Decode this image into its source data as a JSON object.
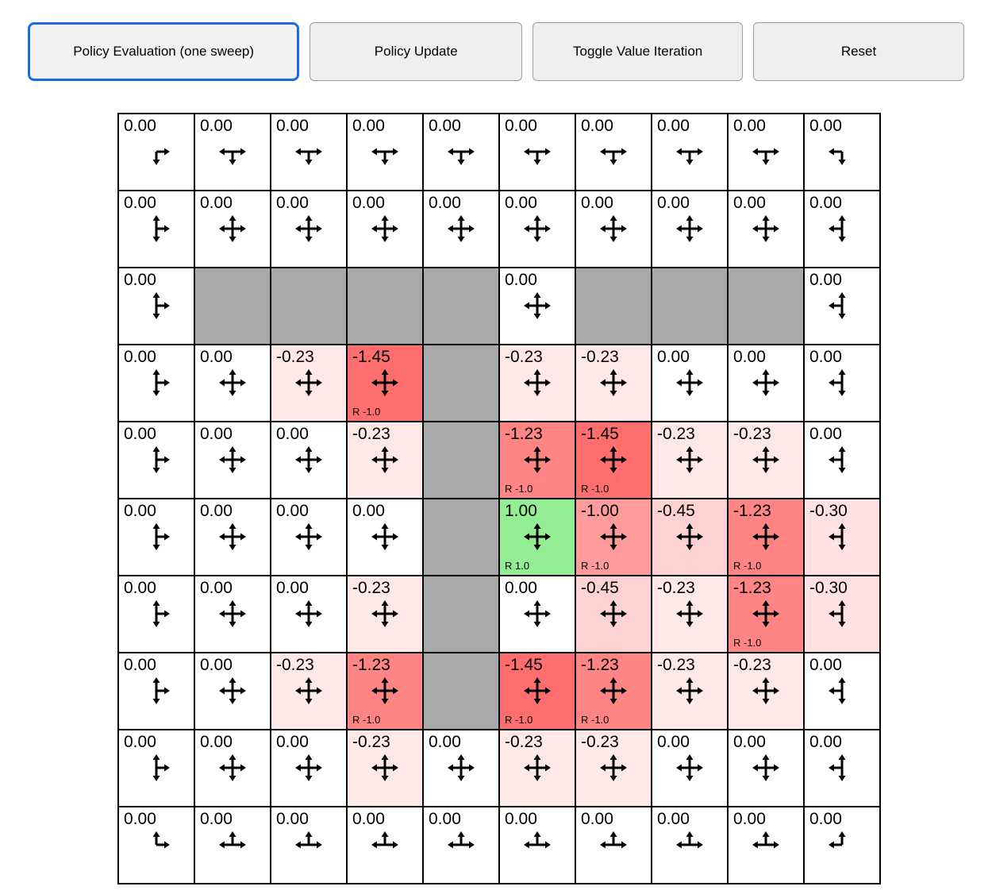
{
  "toolbar": {
    "buttons": [
      {
        "label": "Policy Evaluation (one sweep)",
        "active": true
      },
      {
        "label": "Policy Update",
        "active": false
      },
      {
        "label": "Toggle Value Iteration",
        "active": false
      },
      {
        "label": "Reset",
        "active": false
      }
    ]
  },
  "colors": {
    "wall": "#A9A9A9",
    "active_button_border": "#1B6AE5",
    "cell_border": "#000000",
    "positive_cell": "#94EE94",
    "negative_weak": "#FFE8E8",
    "negative_strong": "#FF6E6E"
  },
  "grid": {
    "cols": 10,
    "rows": [
      [
        {
          "v": "0.00",
          "a": "rd"
        },
        {
          "v": "0.00",
          "a": "lrd"
        },
        {
          "v": "0.00",
          "a": "lrd"
        },
        {
          "v": "0.00",
          "a": "lrd"
        },
        {
          "v": "0.00",
          "a": "lrd"
        },
        {
          "v": "0.00",
          "a": "lrd"
        },
        {
          "v": "0.00",
          "a": "lrd"
        },
        {
          "v": "0.00",
          "a": "lrd"
        },
        {
          "v": "0.00",
          "a": "lrd"
        },
        {
          "v": "0.00",
          "a": "ld"
        }
      ],
      [
        {
          "v": "0.00",
          "a": "udr"
        },
        {
          "v": "0.00",
          "a": "udlr"
        },
        {
          "v": "0.00",
          "a": "udlr"
        },
        {
          "v": "0.00",
          "a": "udlr"
        },
        {
          "v": "0.00",
          "a": "udlr"
        },
        {
          "v": "0.00",
          "a": "udlr"
        },
        {
          "v": "0.00",
          "a": "udlr"
        },
        {
          "v": "0.00",
          "a": "udlr"
        },
        {
          "v": "0.00",
          "a": "udlr"
        },
        {
          "v": "0.00",
          "a": "udl"
        }
      ],
      [
        {
          "v": "0.00",
          "a": "udr"
        },
        {
          "wall": true
        },
        {
          "wall": true
        },
        {
          "wall": true
        },
        {
          "wall": true
        },
        {
          "v": "0.00",
          "a": "udlr"
        },
        {
          "wall": true
        },
        {
          "wall": true
        },
        {
          "wall": true
        },
        {
          "v": "0.00",
          "a": "udl"
        }
      ],
      [
        {
          "v": "0.00",
          "a": "udr"
        },
        {
          "v": "0.00",
          "a": "udlr"
        },
        {
          "v": "-0.23",
          "a": "udlr",
          "bg": "#FFE8E8"
        },
        {
          "v": "-1.45",
          "a": "udlr",
          "bg": "#FF6E6E",
          "rw": "R -1.0"
        },
        {
          "wall": true
        },
        {
          "v": "-0.23",
          "a": "udlr",
          "bg": "#FFE8E8"
        },
        {
          "v": "-0.23",
          "a": "udlr",
          "bg": "#FFE8E8"
        },
        {
          "v": "0.00",
          "a": "udlr"
        },
        {
          "v": "0.00",
          "a": "udlr"
        },
        {
          "v": "0.00",
          "a": "udl"
        }
      ],
      [
        {
          "v": "0.00",
          "a": "udr"
        },
        {
          "v": "0.00",
          "a": "udlr"
        },
        {
          "v": "0.00",
          "a": "udlr"
        },
        {
          "v": "-0.23",
          "a": "udlr",
          "bg": "#FFE8E8"
        },
        {
          "wall": true
        },
        {
          "v": "-1.23",
          "a": "udlr",
          "bg": "#FF8484",
          "rw": "R -1.0"
        },
        {
          "v": "-1.45",
          "a": "udlr",
          "bg": "#FF6E6E",
          "rw": "R -1.0"
        },
        {
          "v": "-0.23",
          "a": "udlr",
          "bg": "#FFE8E8"
        },
        {
          "v": "-0.23",
          "a": "udlr",
          "bg": "#FFE8E8"
        },
        {
          "v": "0.00",
          "a": "udl"
        }
      ],
      [
        {
          "v": "0.00",
          "a": "udr"
        },
        {
          "v": "0.00",
          "a": "udlr"
        },
        {
          "v": "0.00",
          "a": "udlr"
        },
        {
          "v": "0.00",
          "a": "udlr"
        },
        {
          "wall": true
        },
        {
          "v": "1.00",
          "a": "udlr",
          "bg": "#94EE94",
          "rw": "R 1.0"
        },
        {
          "v": "-1.00",
          "a": "udlr",
          "bg": "#FF9B9B",
          "rw": "R -1.0"
        },
        {
          "v": "-0.45",
          "a": "udlr",
          "bg": "#FFD2D2"
        },
        {
          "v": "-1.23",
          "a": "udlr",
          "bg": "#FF8484",
          "rw": "R -1.0"
        },
        {
          "v": "-0.30",
          "a": "udl",
          "bg": "#FFE1E1"
        }
      ],
      [
        {
          "v": "0.00",
          "a": "udr"
        },
        {
          "v": "0.00",
          "a": "udlr"
        },
        {
          "v": "0.00",
          "a": "udlr"
        },
        {
          "v": "-0.23",
          "a": "udlr",
          "bg": "#FFE8E8"
        },
        {
          "wall": true
        },
        {
          "v": "0.00",
          "a": "udlr"
        },
        {
          "v": "-0.45",
          "a": "udlr",
          "bg": "#FFD2D2"
        },
        {
          "v": "-0.23",
          "a": "udlr",
          "bg": "#FFE8E8"
        },
        {
          "v": "-1.23",
          "a": "udlr",
          "bg": "#FF8484",
          "rw": "R -1.0"
        },
        {
          "v": "-0.30",
          "a": "udl",
          "bg": "#FFE1E1"
        }
      ],
      [
        {
          "v": "0.00",
          "a": "udr"
        },
        {
          "v": "0.00",
          "a": "udlr"
        },
        {
          "v": "-0.23",
          "a": "udlr",
          "bg": "#FFE8E8"
        },
        {
          "v": "-1.23",
          "a": "udlr",
          "bg": "#FF8484",
          "rw": "R -1.0"
        },
        {
          "wall": true
        },
        {
          "v": "-1.45",
          "a": "udlr",
          "bg": "#FF6E6E",
          "rw": "R -1.0"
        },
        {
          "v": "-1.23",
          "a": "udlr",
          "bg": "#FF8484",
          "rw": "R -1.0"
        },
        {
          "v": "-0.23",
          "a": "udlr",
          "bg": "#FFE8E8"
        },
        {
          "v": "-0.23",
          "a": "udlr",
          "bg": "#FFE8E8"
        },
        {
          "v": "0.00",
          "a": "udl"
        }
      ],
      [
        {
          "v": "0.00",
          "a": "udr"
        },
        {
          "v": "0.00",
          "a": "udlr"
        },
        {
          "v": "0.00",
          "a": "udlr"
        },
        {
          "v": "-0.23",
          "a": "udlr",
          "bg": "#FFE8E8"
        },
        {
          "v": "0.00",
          "a": "udlr"
        },
        {
          "v": "-0.23",
          "a": "udlr",
          "bg": "#FFE8E8"
        },
        {
          "v": "-0.23",
          "a": "udlr",
          "bg": "#FFE8E8"
        },
        {
          "v": "0.00",
          "a": "udlr"
        },
        {
          "v": "0.00",
          "a": "udlr"
        },
        {
          "v": "0.00",
          "a": "udl"
        }
      ],
      [
        {
          "v": "0.00",
          "a": "ur"
        },
        {
          "v": "0.00",
          "a": "ulr"
        },
        {
          "v": "0.00",
          "a": "ulr"
        },
        {
          "v": "0.00",
          "a": "ulr"
        },
        {
          "v": "0.00",
          "a": "ulr"
        },
        {
          "v": "0.00",
          "a": "ulr"
        },
        {
          "v": "0.00",
          "a": "ulr"
        },
        {
          "v": "0.00",
          "a": "ulr"
        },
        {
          "v": "0.00",
          "a": "ulr"
        },
        {
          "v": "0.00",
          "a": "ul"
        }
      ]
    ]
  }
}
